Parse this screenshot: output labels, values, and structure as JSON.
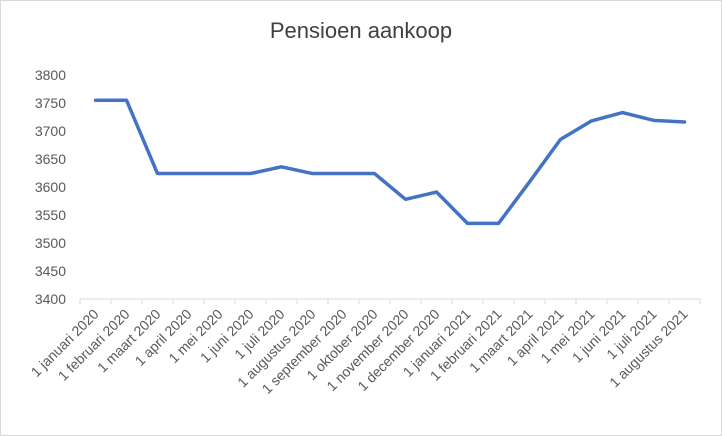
{
  "chart_data": {
    "type": "line",
    "title": "Pensioen aankoop",
    "xlabel": "",
    "ylabel": "",
    "categories": [
      "1 januari 2020",
      "1 februari 2020",
      "1 maart 2020",
      "1 april 2020",
      "1 mei 2020",
      "1 juni 2020",
      "1 juli 2020",
      "1 augustus 2020",
      "1 september 2020",
      "1 oktober 2020",
      "1 november 2020",
      "1 december 2020",
      "1 januari 2021",
      "1 februari 2021",
      "1 maart 2021",
      "1 april 2021",
      "1 mei 2021",
      "1 juni 2021",
      "1 juli 2021",
      "1 augustus 2021"
    ],
    "series": [
      {
        "values": [
          3755,
          3755,
          3624,
          3624,
          3624,
          3624,
          3636,
          3624,
          3624,
          3624,
          3578,
          3591,
          3535,
          3535,
          3609,
          3685,
          3718,
          3733,
          3719,
          3716
        ],
        "color": "#4472c4"
      }
    ],
    "ylim": [
      3400,
      3800
    ],
    "yticks": [
      3400,
      3450,
      3500,
      3550,
      3600,
      3650,
      3700,
      3750,
      3800
    ],
    "grid": false,
    "legend": "none"
  }
}
